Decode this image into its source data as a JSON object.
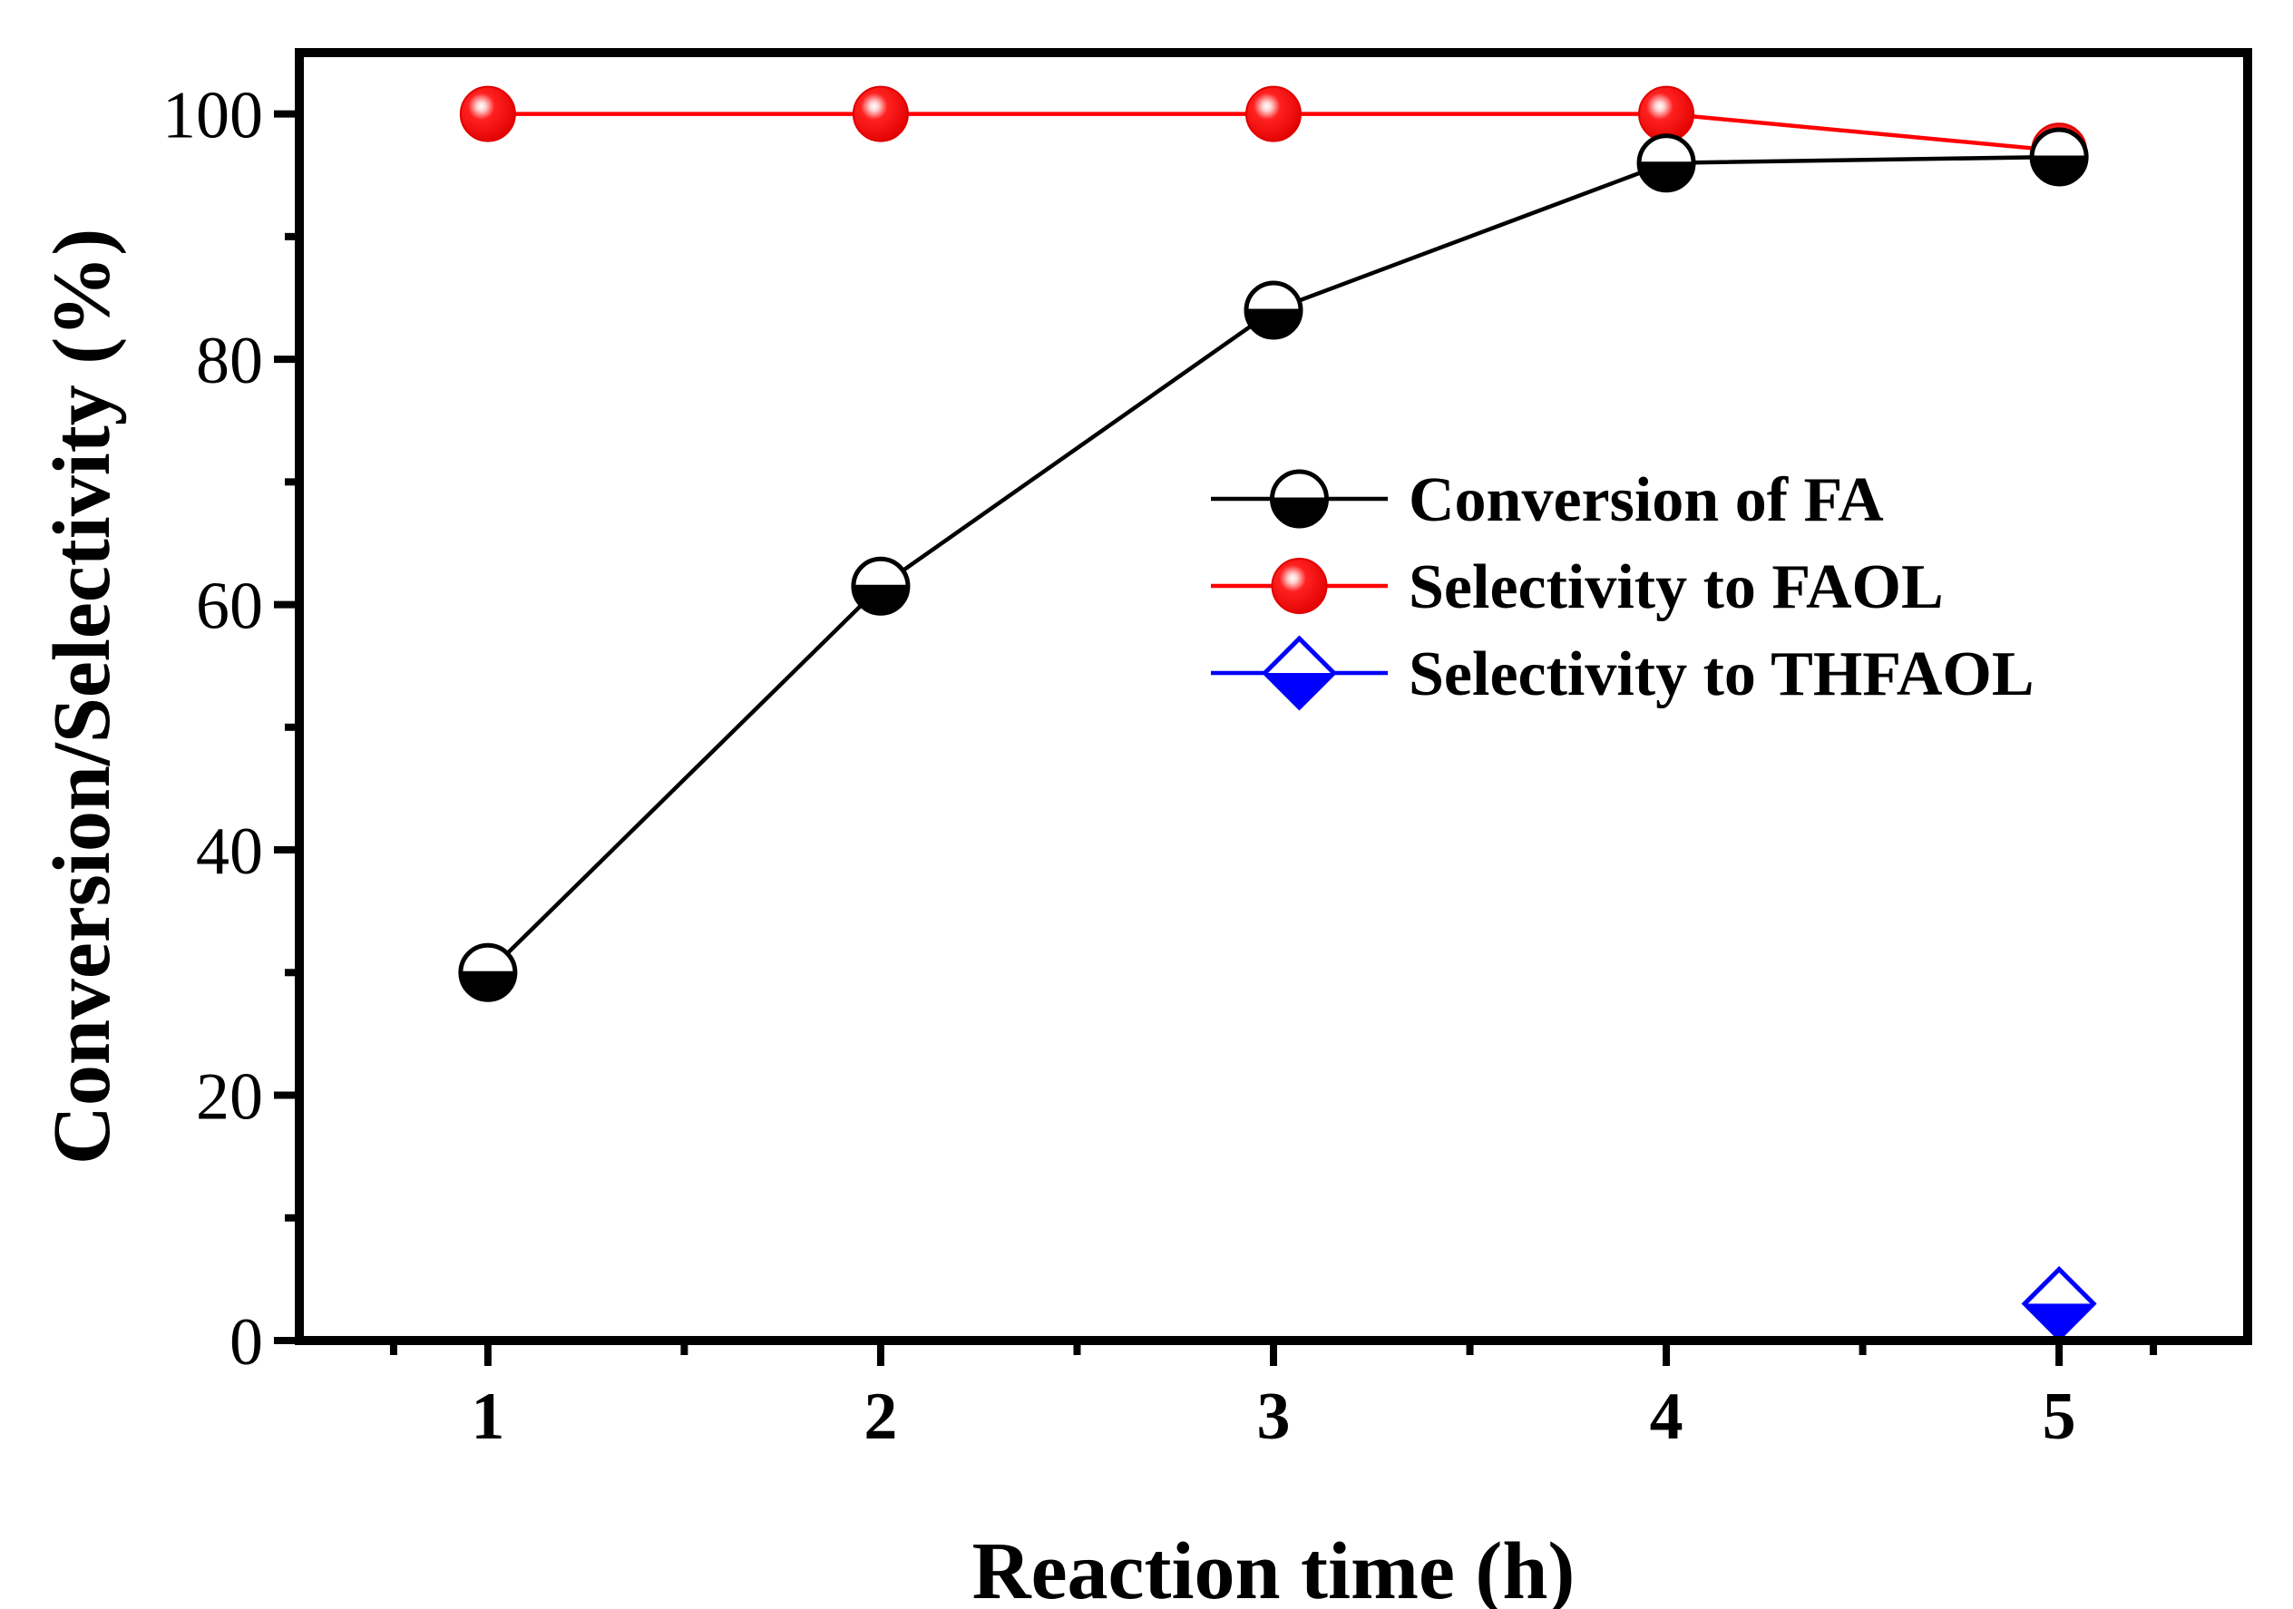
{
  "chart_data": {
    "type": "line",
    "title": "",
    "xlabel": "Reaction time (h)",
    "ylabel": "Conversion/Selectivity (%)",
    "x": [
      1,
      2,
      3,
      4,
      5
    ],
    "xlim": [
      0.52,
      5.48
    ],
    "ylim": [
      0,
      105
    ],
    "xticks": [
      1,
      2,
      3,
      4,
      5
    ],
    "yticks": [
      0,
      20,
      40,
      60,
      80,
      100
    ],
    "grid": false,
    "legend_position": "center-right",
    "series": [
      {
        "name": "Conversion of FA",
        "color": "#000000",
        "marker": "half-filled-circle",
        "x": [
          1,
          2,
          3,
          4,
          5
        ],
        "values": [
          30,
          61.5,
          84,
          96,
          96.5
        ]
      },
      {
        "name": "Selectivity to FAOL",
        "color": "#ff0000",
        "marker": "red-sphere",
        "x": [
          1,
          2,
          3,
          4,
          5
        ],
        "values": [
          100,
          100,
          100,
          100,
          97
        ]
      },
      {
        "name": "Selectivity to THFAOL",
        "color": "#0000ff",
        "marker": "half-filled-diamond",
        "x": [
          5
        ],
        "values": [
          3
        ]
      }
    ]
  }
}
